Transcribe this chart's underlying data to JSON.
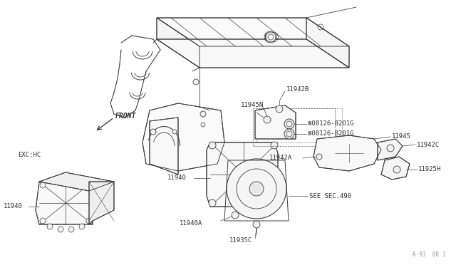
{
  "bg_color": "#ffffff",
  "line_color": "#404040",
  "text_color": "#303030",
  "watermark": "A·93  00 3",
  "exc_hc_label": "EXC:HC",
  "front_label": "FRONT",
  "figsize": [
    6.4,
    3.72
  ],
  "dpi": 100
}
